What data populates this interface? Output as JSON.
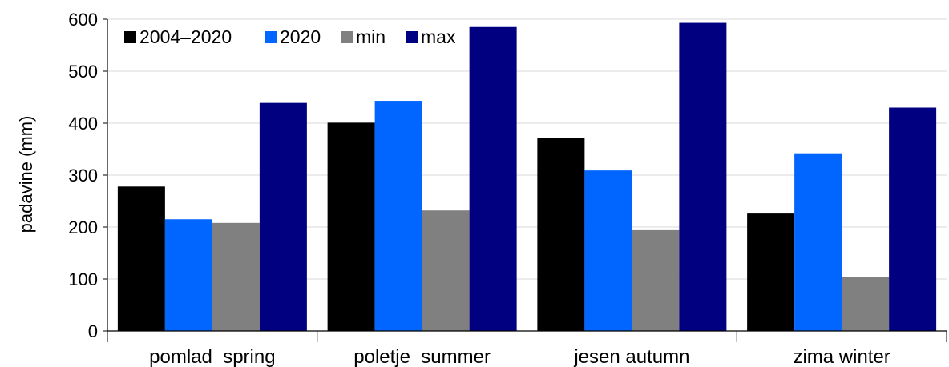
{
  "chart_data": {
    "type": "bar",
    "categories": [
      "pomlad  spring",
      "poletje  summer",
      "jesen autumn",
      "zima winter"
    ],
    "series": [
      {
        "name": "2004–2020",
        "color": "#000000",
        "values": [
          278,
          401,
          371,
          226
        ]
      },
      {
        "name": "2020",
        "color": "#0066ff",
        "values": [
          215,
          443,
          309,
          342
        ]
      },
      {
        "name": "min",
        "color": "#808080",
        "values": [
          208,
          232,
          194,
          104
        ]
      },
      {
        "name": "max",
        "color": "#000080",
        "values": [
          439,
          585,
          593,
          430
        ]
      }
    ],
    "ylabel": "padavine (mm)",
    "ylim": [
      0,
      600
    ],
    "yticks": [
      0,
      100,
      200,
      300,
      400,
      500,
      600
    ],
    "grid": true,
    "legend": "top-left"
  }
}
